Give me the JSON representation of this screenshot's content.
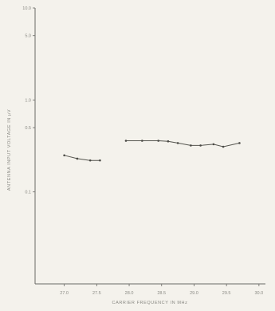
{
  "chart_data": {
    "type": "line",
    "title": "",
    "xlabel": "CARRIER FREQUENCY IN MHz",
    "ylabel": "ANTENNA INPUT VOLTAGE IN µV",
    "y_scale": "log",
    "xlim": [
      26.55,
      30.1
    ],
    "ylim": [
      0.01,
      10.0
    ],
    "x_ticks": [
      {
        "value": 27.0,
        "label": "27.0"
      },
      {
        "value": 27.5,
        "label": "27.5"
      },
      {
        "value": 28.0,
        "label": "28.0"
      },
      {
        "value": 28.5,
        "label": "28.5"
      },
      {
        "value": 29.0,
        "label": "29.0"
      },
      {
        "value": 29.5,
        "label": "29.5"
      },
      {
        "value": 30.0,
        "label": "30.0"
      }
    ],
    "y_ticks": [
      {
        "value": 10.0,
        "label": "10.0"
      },
      {
        "value": 5.0,
        "label": "5.0"
      },
      {
        "value": 1.0,
        "label": "1.0"
      },
      {
        "value": 0.5,
        "label": "0.5"
      },
      {
        "value": 0.1,
        "label": "0.1"
      }
    ],
    "grid": false,
    "series": [
      {
        "segments": [
          {
            "x": [
              27.0,
              27.2,
              27.4,
              27.55
            ],
            "y": [
              0.25,
              0.23,
              0.22,
              0.22
            ]
          },
          {
            "x": [
              27.95,
              28.2,
              28.45,
              28.6,
              28.75,
              28.95,
              29.1,
              29.3,
              29.45,
              29.7
            ],
            "y": [
              0.36,
              0.36,
              0.36,
              0.355,
              0.34,
              0.32,
              0.32,
              0.33,
              0.31,
              0.34
            ]
          }
        ]
      }
    ]
  }
}
